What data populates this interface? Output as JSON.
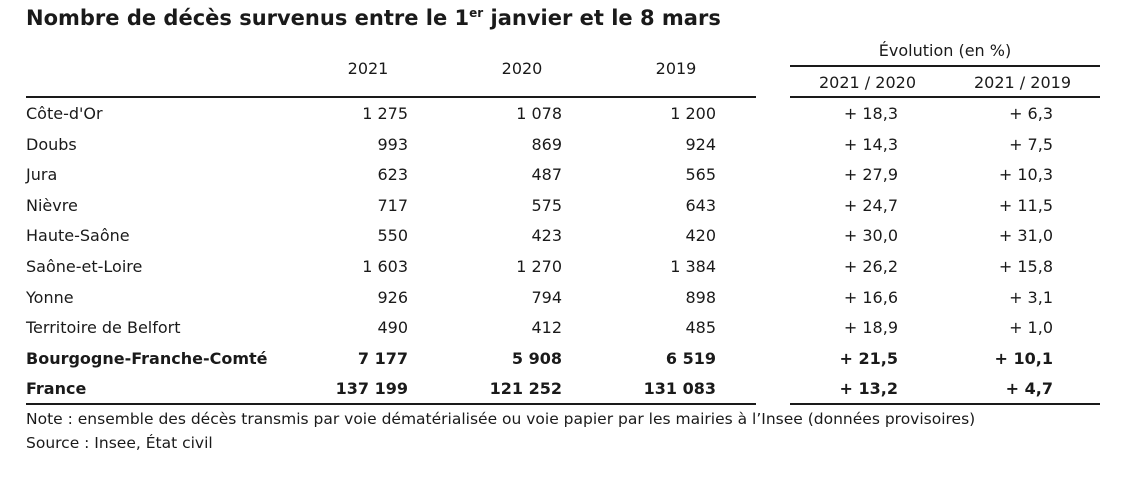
{
  "title": {
    "main": "Nombre de décès survenus entre le 1",
    "sup": "er",
    "tail": " janvier et le 8 mars"
  },
  "header": {
    "years": [
      "2021",
      "2020",
      "2019"
    ],
    "evolution_group": "Évolution (en %)",
    "evolution_cols": [
      "2021 / 2020",
      "2021 / 2019"
    ]
  },
  "rows": [
    {
      "name": "Côte-d'Or",
      "v2021": "1 275",
      "v2020": "1 078",
      "v2019": "1 200",
      "e1": "+ 18,3",
      "e2": "+ 6,3",
      "bold": false
    },
    {
      "name": "Doubs",
      "v2021": "993",
      "v2020": "869",
      "v2019": "924",
      "e1": "+ 14,3",
      "e2": "+ 7,5",
      "bold": false
    },
    {
      "name": "Jura",
      "v2021": "623",
      "v2020": "487",
      "v2019": "565",
      "e1": "+ 27,9",
      "e2": "+ 10,3",
      "bold": false
    },
    {
      "name": "Nièvre",
      "v2021": "717",
      "v2020": "575",
      "v2019": "643",
      "e1": "+ 24,7",
      "e2": "+ 11,5",
      "bold": false
    },
    {
      "name": "Haute-Saône",
      "v2021": "550",
      "v2020": "423",
      "v2019": "420",
      "e1": "+ 30,0",
      "e2": "+ 31,0",
      "bold": false
    },
    {
      "name": "Saône-et-Loire",
      "v2021": "1 603",
      "v2020": "1 270",
      "v2019": "1 384",
      "e1": "+ 26,2",
      "e2": "+ 15,8",
      "bold": false
    },
    {
      "name": "Yonne",
      "v2021": "926",
      "v2020": "794",
      "v2019": "898",
      "e1": "+ 16,6",
      "e2": "+ 3,1",
      "bold": false
    },
    {
      "name": "Territoire de Belfort",
      "v2021": "490",
      "v2020": "412",
      "v2019": "485",
      "e1": "+ 18,9",
      "e2": "+ 1,0",
      "bold": false
    },
    {
      "name": "Bourgogne-Franche-Comté",
      "v2021": "7 177",
      "v2020": "5 908",
      "v2019": "6 519",
      "e1": "+ 21,5",
      "e2": "+ 10,1",
      "bold": true
    },
    {
      "name": "France",
      "v2021": "137 199",
      "v2020": "121 252",
      "v2019": "131 083",
      "e1": "+ 13,2",
      "e2": "+ 4,7",
      "bold": true
    }
  ],
  "footer": {
    "note": "Note : ensemble des décès transmis par voie dématérialisée ou voie papier par les mairies à l’Insee (données provisoires)",
    "source": "Source : Insee, État civil"
  }
}
